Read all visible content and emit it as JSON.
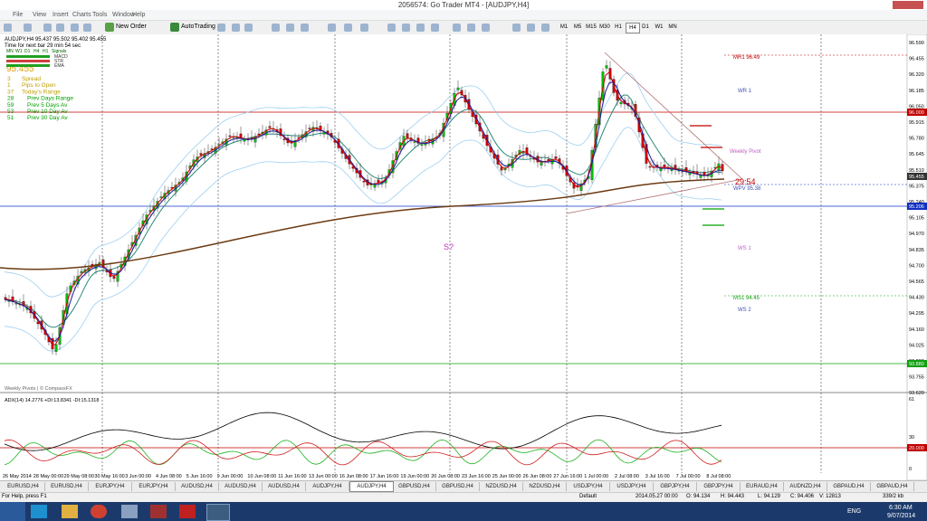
{
  "window": {
    "title": "2056574: Go Trader MT4 - [AUDJPY,H4]",
    "menu": [
      "File",
      "View",
      "Insert",
      "Charts",
      "Tools",
      "Window",
      "Help"
    ]
  },
  "toolbar": {
    "new_order": "New Order",
    "autotrading": "AutoTrading",
    "timeframes": [
      "M1",
      "M5",
      "M15",
      "M30",
      "H1",
      "H4",
      "D1",
      "W1",
      "MN"
    ]
  },
  "chart": {
    "header": "AUDJPY,H4  95.437 95.502 95.402 95.455",
    "timer": "Time for next bar 29 min 54 sec",
    "signal_columns": [
      "MN",
      "W1",
      "D1",
      "H4",
      "H1",
      "Signals"
    ],
    "indicators": [
      "MACD",
      "STR",
      "EMA"
    ],
    "price": "95.455",
    "stats": [
      {
        "value": 3,
        "label": "Spread"
      },
      {
        "value": 1,
        "label": "Pips to Open"
      },
      {
        "value": 37,
        "label": "Today's Range"
      },
      {
        "value": 28,
        "label": "Prev Days Range"
      },
      {
        "value": 59,
        "label": "Prev 5 Days Av"
      },
      {
        "value": 53,
        "label": "Prev 10 Day Av"
      },
      {
        "value": 51,
        "label": "Prev 30 Day Av"
      }
    ],
    "price_axis": [
      "96.590",
      "96.455",
      "96.320",
      "96.185",
      "96.050",
      "95.915",
      "95.780",
      "95.645",
      "95.510",
      "95.375",
      "95.240",
      "95.105",
      "94.970",
      "94.835",
      "94.700",
      "94.565",
      "94.430",
      "94.295",
      "94.160",
      "94.025",
      "93.890",
      "93.755",
      "93.620"
    ],
    "price_markers": [
      {
        "label": "96.000",
        "color": "#c00000"
      },
      {
        "label": "95.455",
        "color": "#333333"
      },
      {
        "label": "95.206",
        "color": "#1030c0"
      },
      {
        "label": "93.880",
        "color": "#10a010"
      }
    ],
    "pivots": [
      "MR1  96.49",
      "WR 1",
      "Weekly Pivot",
      "29:54",
      "WPV  95.38",
      "WS 1",
      "MS1  94.45",
      "WS 2"
    ],
    "signal": "S?",
    "credit": "Weekly Pivots | © CompassFX"
  },
  "adx": {
    "label": "ADX(14) 14.2776 +DI:13.8341 -DI:15.1318",
    "axis": [
      "61",
      "30",
      "20.000",
      "0"
    ]
  },
  "time_axis": [
    "26 May 2014",
    "28 May 00:00",
    "29 May 08:00",
    "30 May 16:00",
    "3 Jun 00:00",
    "4 Jun 08:00",
    "5 Jun 16:00",
    "9 Jun 00:00",
    "10 Jun 08:00",
    "11 Jun 16:00",
    "13 Jun 00:00",
    "16 Jun 08:00",
    "17 Jun 16:00",
    "19 Jun 00:00",
    "20 Jun 08:00",
    "23 Jun 16:00",
    "25 Jun 00:00",
    "26 Jun 08:00",
    "27 Jun 16:00",
    "1 Jul 00:00",
    "2 Jul 08:00",
    "3 Jul 16:00",
    "7 Jul 00:00",
    "8 Jul 08:00"
  ],
  "tabs": [
    "EURUSD,H4",
    "EURUSD,H4",
    "EURJPY,H4",
    "EURJPY,H4",
    "AUDUSD,H4",
    "AUDUSD,H4",
    "AUDUSD,H4",
    "AUDJPY,H4",
    "AUDJPY,H4",
    "GBPUSD,H4",
    "GBPUSD,H4",
    "NZDUSD,H4",
    "NZDUSD,H4",
    "USDJPY,H4",
    "USDJPY,H4",
    "GBPJPY,H4",
    "GBPJPY,H4",
    "EURAUD,H4",
    "AUDNZD,H4",
    "GBPAUD,H4",
    "GBPAUD,H4"
  ],
  "active_tab": 8,
  "status": [
    "For Help, press F1",
    "Default",
    "2014.05.27 00:00",
    "O: 94.134",
    "H: 94.443",
    "L: 94.129",
    "C: 94.406",
    "V: 12813",
    "339/2 kb"
  ],
  "taskbar": {
    "language": "ENG",
    "time": "6:30 AM",
    "date": "9/07/2014"
  }
}
